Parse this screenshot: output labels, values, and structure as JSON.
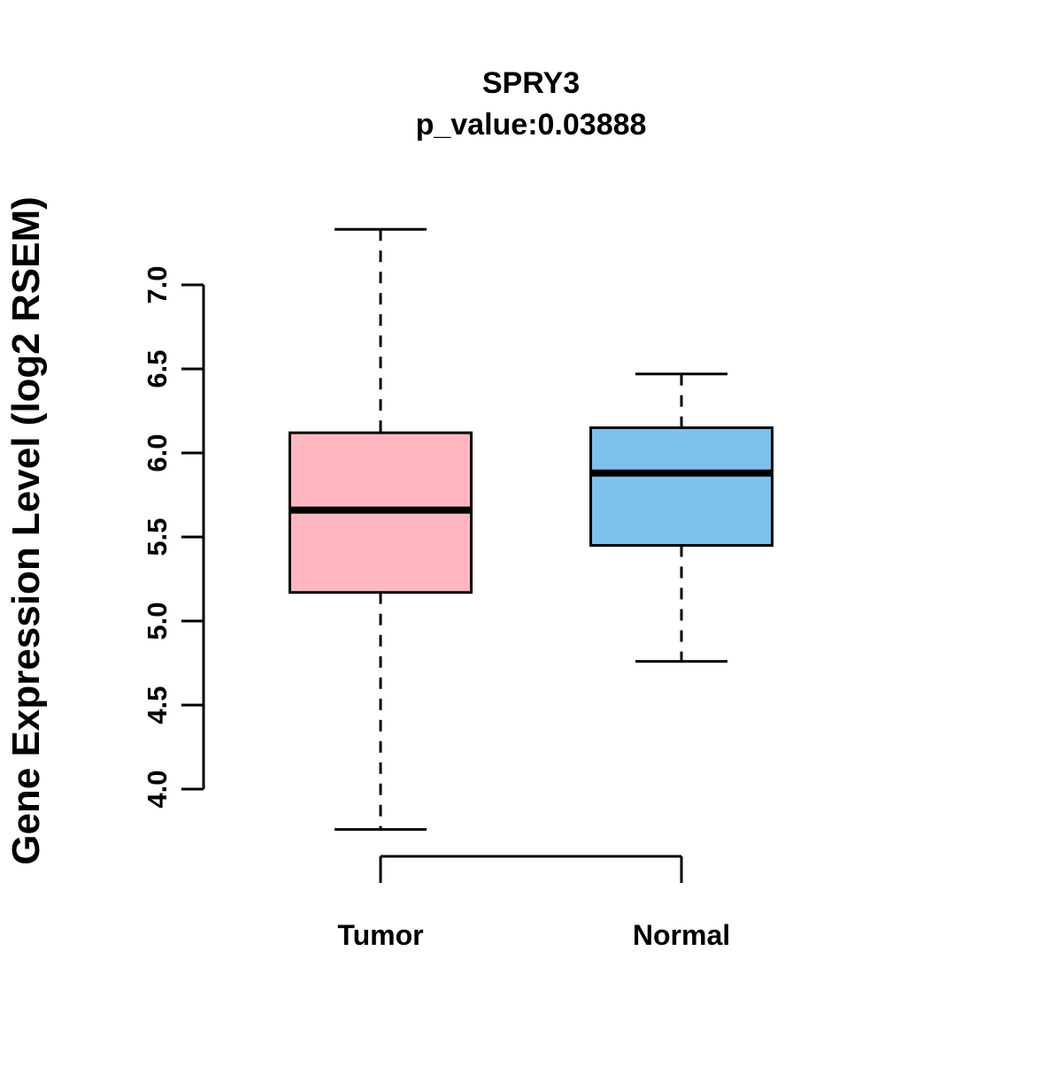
{
  "title": "SPRY3",
  "subtitle": "p_value:0.03888",
  "chart_data": {
    "type": "boxplot",
    "title": "SPRY3",
    "subtitle": "p_value:0.03888",
    "p_value": 0.03888,
    "ylabel": "Gene Expression Level (log2 RSEM)",
    "ylim": [
      3.6,
      7.45
    ],
    "yticks": [
      "4.0",
      "4.5",
      "5.0",
      "5.5",
      "6.0",
      "6.5",
      "7.0"
    ],
    "grid": false,
    "legend": "none",
    "categories": [
      "Tumor",
      "Normal"
    ],
    "series": [
      {
        "name": "Tumor",
        "color": "#FFB6C1",
        "whisker_low": 3.76,
        "q1": 5.17,
        "median": 5.66,
        "q3": 6.12,
        "whisker_high": 7.33
      },
      {
        "name": "Normal",
        "color": "#7EC0EE",
        "whisker_low": 4.76,
        "q1": 5.45,
        "median": 5.88,
        "q3": 6.15,
        "whisker_high": 6.47
      }
    ]
  }
}
